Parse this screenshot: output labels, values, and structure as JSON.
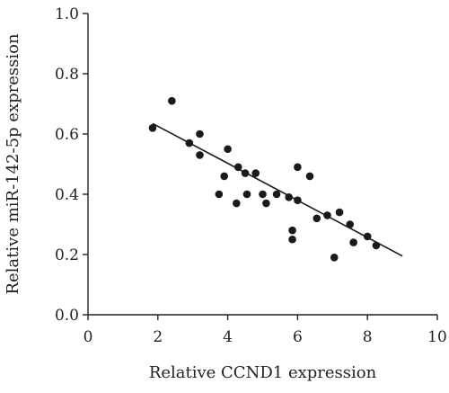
{
  "chart_data": {
    "type": "scatter",
    "xlabel": "Relative CCND1 expression",
    "ylabel": "Relative miR-142-5p expression",
    "xlim": [
      0,
      10
    ],
    "ylim": [
      0.0,
      1.0
    ],
    "xticks": [
      "0",
      "2",
      "4",
      "6",
      "8",
      "10"
    ],
    "yticks": [
      "0.0",
      "0.2",
      "0.4",
      "0.6",
      "0.8",
      "1.0"
    ],
    "grid": false,
    "series": [
      {
        "points": [
          {
            "x": 1.85,
            "y": 0.62
          },
          {
            "x": 2.4,
            "y": 0.71
          },
          {
            "x": 2.9,
            "y": 0.57
          },
          {
            "x": 3.2,
            "y": 0.6
          },
          {
            "x": 3.2,
            "y": 0.53
          },
          {
            "x": 3.75,
            "y": 0.4
          },
          {
            "x": 3.9,
            "y": 0.46
          },
          {
            "x": 4.0,
            "y": 0.55
          },
          {
            "x": 4.25,
            "y": 0.37
          },
          {
            "x": 4.3,
            "y": 0.49
          },
          {
            "x": 4.5,
            "y": 0.47
          },
          {
            "x": 4.55,
            "y": 0.4
          },
          {
            "x": 4.8,
            "y": 0.47
          },
          {
            "x": 5.0,
            "y": 0.4
          },
          {
            "x": 5.1,
            "y": 0.37
          },
          {
            "x": 5.4,
            "y": 0.4
          },
          {
            "x": 5.75,
            "y": 0.39
          },
          {
            "x": 5.85,
            "y": 0.28
          },
          {
            "x": 5.85,
            "y": 0.25
          },
          {
            "x": 6.0,
            "y": 0.49
          },
          {
            "x": 6.0,
            "y": 0.38
          },
          {
            "x": 6.35,
            "y": 0.46
          },
          {
            "x": 6.55,
            "y": 0.32
          },
          {
            "x": 6.85,
            "y": 0.33
          },
          {
            "x": 7.05,
            "y": 0.19
          },
          {
            "x": 7.2,
            "y": 0.34
          },
          {
            "x": 7.5,
            "y": 0.3
          },
          {
            "x": 7.6,
            "y": 0.24
          },
          {
            "x": 8.0,
            "y": 0.26
          },
          {
            "x": 8.25,
            "y": 0.23
          }
        ]
      }
    ],
    "fit_line": {
      "x": [
        1.85,
        9.0
      ],
      "y": [
        0.635,
        0.195
      ]
    }
  }
}
